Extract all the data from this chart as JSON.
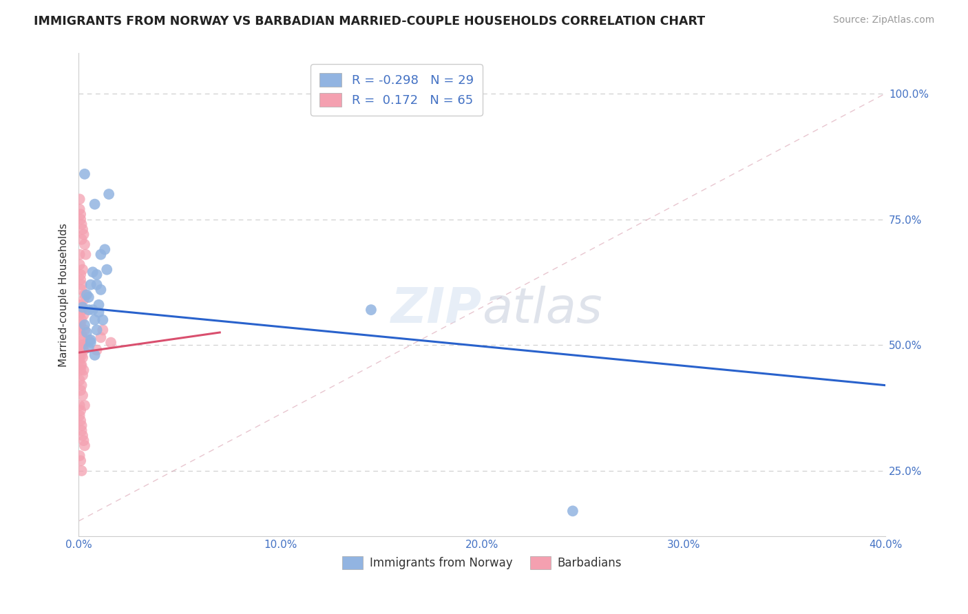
{
  "title": "IMMIGRANTS FROM NORWAY VS BARBADIAN MARRIED-COUPLE HOUSEHOLDS CORRELATION CHART",
  "source": "Source: ZipAtlas.com",
  "ylabel": "Married-couple Households",
  "xlabel_ticks": [
    "0.0%",
    "10.0%",
    "20.0%",
    "30.0%",
    "40.0%"
  ],
  "xlabel_vals": [
    0.0,
    10.0,
    20.0,
    30.0,
    40.0
  ],
  "ylabel_ticks": [
    "25.0%",
    "50.0%",
    "75.0%",
    "100.0%"
  ],
  "ylabel_vals": [
    25.0,
    50.0,
    75.0,
    100.0
  ],
  "xlim": [
    0.0,
    40.0
  ],
  "ylim": [
    12.0,
    108.0
  ],
  "norway_color": "#92b4e1",
  "barbadian_color": "#f4a0b0",
  "norway_line_color": "#2962cc",
  "barbadian_line_color": "#d94f6e",
  "norway_line_x0": 0.0,
  "norway_line_y0": 57.5,
  "norway_line_x1": 40.0,
  "norway_line_y1": 42.0,
  "barbadian_line_x0": 0.0,
  "barbadian_line_y0": 48.5,
  "barbadian_line_x1": 7.0,
  "barbadian_line_y1": 52.5,
  "diag_x0": 0.0,
  "diag_y0": 15.0,
  "diag_x1": 40.0,
  "diag_y1": 100.0,
  "norway_scatter_x": [
    0.3,
    0.8,
    1.5,
    0.5,
    0.9,
    1.1,
    0.6,
    0.4,
    1.0,
    0.7,
    1.3,
    0.2,
    0.8,
    1.0,
    0.5,
    0.9,
    1.4,
    0.3,
    0.7,
    1.1,
    0.4,
    0.6,
    0.9,
    0.5,
    1.2,
    0.6,
    0.8,
    14.5,
    24.5
  ],
  "norway_scatter_y": [
    84.0,
    78.0,
    80.0,
    57.0,
    64.0,
    68.0,
    62.0,
    60.0,
    58.0,
    64.5,
    69.0,
    57.5,
    55.0,
    56.5,
    59.5,
    62.0,
    65.0,
    54.0,
    57.0,
    61.0,
    52.5,
    51.0,
    53.0,
    49.5,
    55.0,
    50.5,
    48.0,
    57.0,
    17.0
  ],
  "barbadian_scatter_x": [
    0.05,
    0.1,
    0.15,
    0.2,
    0.05,
    0.1,
    0.15,
    0.25,
    0.3,
    0.35,
    0.05,
    0.1,
    0.15,
    0.05,
    0.2,
    0.1,
    0.15,
    0.3,
    0.25,
    0.05,
    0.1,
    0.15,
    0.2,
    0.05,
    0.1,
    0.25,
    0.15,
    0.2,
    0.3,
    0.1,
    0.15,
    0.05,
    0.2,
    0.1,
    0.25,
    0.15,
    0.05,
    0.1,
    0.15,
    0.2,
    0.25,
    0.05,
    0.1,
    0.15,
    0.2,
    0.3,
    0.05,
    0.1,
    0.15,
    0.05,
    0.1,
    0.15,
    0.2,
    0.25,
    0.3,
    0.05,
    0.1,
    0.15,
    0.5,
    1.2,
    0.15,
    0.9,
    1.1,
    1.6,
    0.2
  ],
  "barbadian_scatter_y": [
    79.0,
    76.0,
    74.0,
    73.0,
    77.0,
    75.0,
    71.0,
    72.0,
    70.0,
    68.0,
    66.0,
    64.0,
    62.0,
    68.0,
    65.0,
    63.0,
    61.0,
    60.0,
    59.0,
    56.0,
    58.0,
    55.0,
    57.0,
    53.0,
    54.0,
    56.0,
    52.0,
    51.0,
    53.0,
    49.0,
    50.0,
    48.0,
    47.5,
    46.0,
    49.0,
    48.0,
    47.0,
    45.0,
    46.0,
    44.0,
    45.0,
    43.0,
    41.0,
    42.0,
    40.0,
    38.0,
    36.0,
    35.0,
    34.0,
    38.0,
    37.0,
    33.0,
    32.0,
    31.0,
    30.0,
    28.0,
    27.0,
    25.0,
    51.0,
    53.0,
    50.0,
    49.0,
    51.5,
    50.5,
    49.5
  ],
  "legend_norway_label": "R = -0.298   N = 29",
  "legend_barbadian_label": "R =  0.172   N = 65",
  "bottom_legend_norway": "Immigrants from Norway",
  "bottom_legend_barbadian": "Barbadians"
}
